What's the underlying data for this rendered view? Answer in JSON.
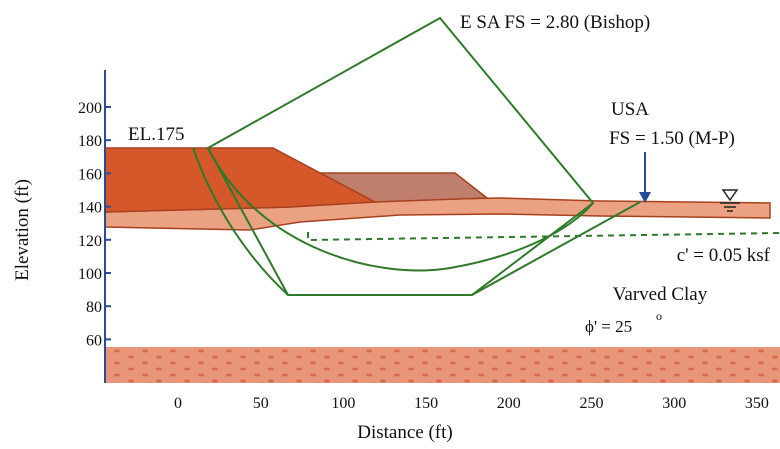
{
  "axes": {
    "x_label": "Distance (ft)",
    "y_label": "Elevation (ft)",
    "xticks": [
      0,
      50,
      100,
      150,
      200,
      250,
      300,
      350
    ],
    "yticks": [
      60,
      80,
      100,
      120,
      140,
      160,
      180,
      200
    ]
  },
  "annotations": {
    "esa": "E SA FS = 2.80 (Bishop)",
    "usa": "USA",
    "usa_fs": "FS = 1.50 (M-P)",
    "crest": "EL.175",
    "cohesion": "c' = 0.05 ksf",
    "clay": "Varved Clay",
    "phi": "ϕ' = 25",
    "phi_unit": "o"
  }
}
